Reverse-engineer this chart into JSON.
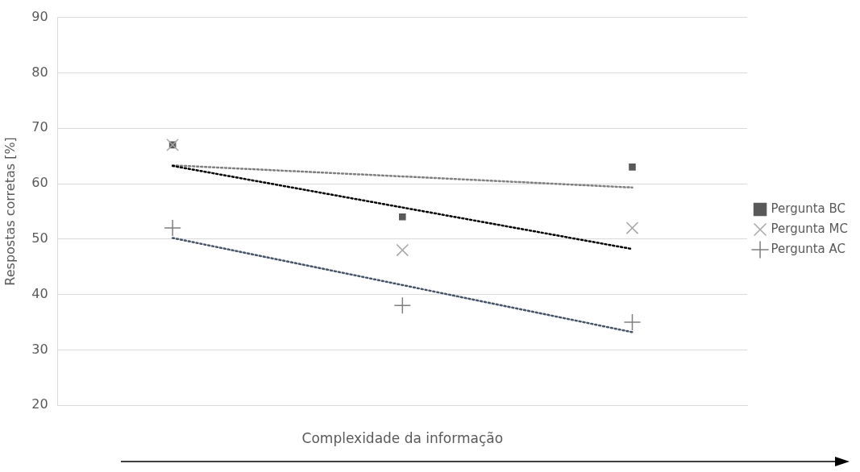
{
  "chart_data": {
    "type": "scatter",
    "xlabel": "Complexidade da informação",
    "ylabel": "Respostas corretas [%]",
    "categories": [
      null,
      null,
      null
    ],
    "ylim": [
      20,
      90
    ],
    "yticks": [
      20,
      30,
      40,
      50,
      60,
      70,
      80,
      90
    ],
    "grid": "y",
    "legend": "right",
    "series": [
      {
        "name": "Pergunta BC",
        "color": "#595959",
        "marker": "square",
        "values": [
          67,
          54,
          63
        ]
      },
      {
        "name": "Pergunta MC",
        "color": "#a6a6a6",
        "marker": "x",
        "values": [
          67,
          48,
          52
        ]
      },
      {
        "name": "Pergunta AC",
        "color": "#7f7f7f",
        "marker": "cross",
        "values": [
          52,
          38,
          35
        ]
      },
      {
        "type": "line",
        "color": "#7f7f7f",
        "line_style": "dotted",
        "marker": "none",
        "values": [
          63.3,
          61.3,
          59.3
        ]
      },
      {
        "type": "line",
        "color": "#000000",
        "line_style": "dotted",
        "marker": "none",
        "values": [
          63.2,
          55.7,
          48.2
        ]
      },
      {
        "type": "line",
        "color": "#44546a",
        "line_style": "dotted",
        "marker": "none",
        "values": [
          50.2,
          41.7,
          33.2
        ]
      }
    ]
  }
}
